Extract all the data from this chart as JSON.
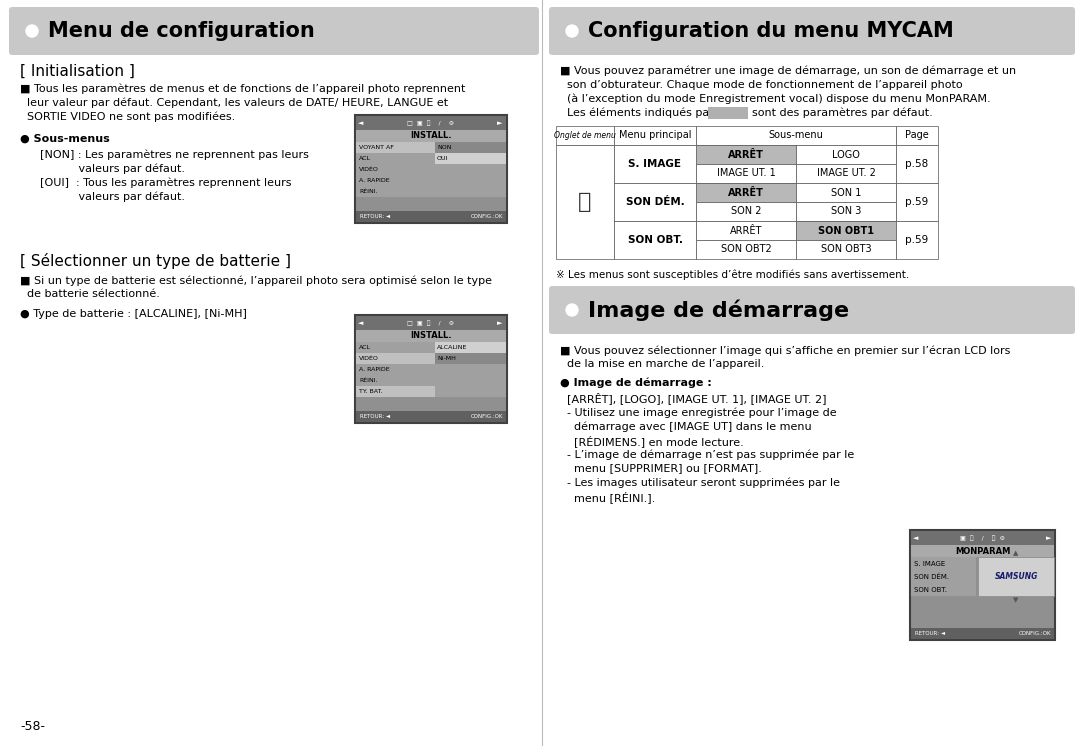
{
  "bg_color": "#ffffff",
  "title_left": "Menu de configuration",
  "title_right": "Configuration du menu MYCAM",
  "title_bg": "#c8c8c8",
  "title_text_color": "#000000",
  "section1_title": "[ Initialisation ]",
  "section1_body_line1": "■ Tous les paramètres de menus et de fonctions de l’appareil photo reprennent",
  "section1_body_line2": "  leur valeur par défaut. Cependant, les valeurs de DATE/ HEURE, LANGUE et",
  "section1_body_line3": "  SORTIE VIDEO ne sont pas modifiées.",
  "section1_bullet": "● Sous-menus",
  "section1_sub1a": "[NON] : Les paramètres ne reprennent pas leurs",
  "section1_sub1b": "           valeurs par défaut.",
  "section1_sub2a": "[OUI]  : Tous les paramètres reprennent leurs",
  "section1_sub2b": "           valeurs par défaut.",
  "section2_title": "[ Sélectionner un type de batterie ]",
  "section2_body_line1": "■ Si un type de batterie est sélectionné, l’appareil photo sera optimisé selon le type",
  "section2_body_line2": "  de batterie sélectionné.",
  "section2_bullet": "● Type de batterie : [ALCALINE], [Ni-MH]",
  "page_num": "-58-",
  "right_intro_line1": "■ Vous pouvez paramétrer une image de démarrage, un son de démarrage et un",
  "right_intro_line2": "  son d’obturateur. Chaque mode de fonctionnement de l’appareil photo",
  "right_intro_line3": "  (à l’exception du mode Enregistrement vocal) dispose du menu MonPARAM.",
  "right_intro_line4a": "  Les éléments indiqués par",
  "right_intro_line4b": "sont des paramètres par défaut.",
  "table_col0_header": "Onglet de menu",
  "table_col1_header": "Menu principal",
  "table_col2_header": "Sous-menu",
  "table_col3_header": "Page",
  "footnote": "※ Les menus sont susceptibles d’être modifiés sans avertissement.",
  "title3": "Image de démarrage",
  "rb2_line1": "■ Vous pouvez sélectionner l’image qui s’affiche en premier sur l’écran LCD lors",
  "rb2_line2": "  de la mise en marche de l’appareil.",
  "rb3_bullet": "● Image de démarrage :",
  "rb3_line1": "  [ARRÊT], [LOGO], [IMAGE UT. 1], [IMAGE UT. 2]",
  "rb3_line2": "  - Utilisez une image enregistrée pour l’image de",
  "rb3_line3": "    démarrage avec [IMAGE UT] dans le menu",
  "rb3_line4": "    [RÉDIMENS.] en mode lecture.",
  "rb3_line5": "  - L’image de démarrage n’est pas supprimée par le",
  "rb3_line6": "    menu [SUPPRIMER] ou [FORMAT].",
  "rb3_line7": "  - Les images utilisateur seront supprimées par le",
  "rb3_line8": "    menu [RÉINI.]."
}
